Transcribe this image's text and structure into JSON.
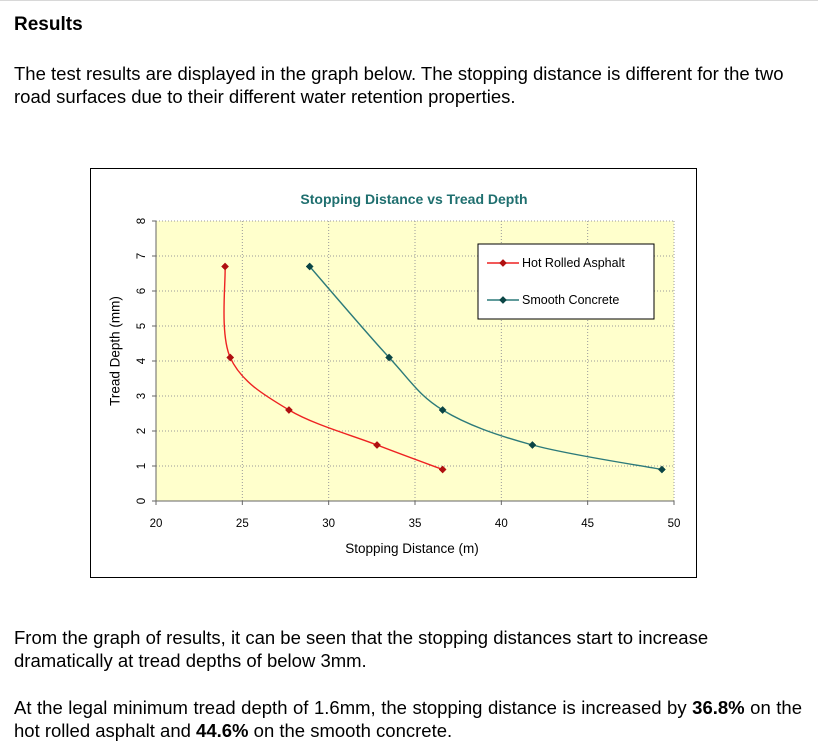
{
  "page": {
    "heading": "Results",
    "intro": "The test results are displayed in the graph below. The stopping distance is different for the two road surfaces due to their different water retention properties.",
    "finding": "From the graph of results, it can be seen that the stopping distances start to increase dramatically at tread depths of below 3mm.",
    "conclusion": {
      "prefix": "At the legal minimum tread depth of 1.6mm, the stopping distance is increased by ",
      "asphalt_pct": "36.8%",
      "middle": " on the hot rolled asphalt and ",
      "concrete_pct": "44.6%",
      "suffix": " on the smooth concrete."
    }
  },
  "chart_data": {
    "type": "scatter",
    "title": "Stopping Distance vs Tread Depth",
    "xlabel": "Stopping Distance (m)",
    "ylabel": "Tread Depth (mm)",
    "xlim": [
      20,
      50
    ],
    "ylim": [
      0,
      8
    ],
    "xticks": [
      20,
      25,
      30,
      35,
      40,
      45,
      50
    ],
    "yticks": [
      0,
      1,
      2,
      3,
      4,
      5,
      6,
      7,
      8
    ],
    "grid": true,
    "legend_position": "top-right",
    "plot_background": "#ffffcc",
    "series": [
      {
        "name": "Hot Rolled Asphalt",
        "color": "#ee2222",
        "marker_color": "#b01010",
        "x": [
          24.0,
          24.3,
          27.7,
          32.8,
          36.6
        ],
        "y": [
          6.7,
          4.1,
          2.6,
          1.6,
          0.9
        ]
      },
      {
        "name": "Smooth Concrete",
        "color": "#2c7a7a",
        "marker_color": "#0b4545",
        "x": [
          28.9,
          33.5,
          36.6,
          41.8,
          49.3
        ],
        "y": [
          6.7,
          4.1,
          2.6,
          1.6,
          0.9
        ]
      }
    ]
  }
}
